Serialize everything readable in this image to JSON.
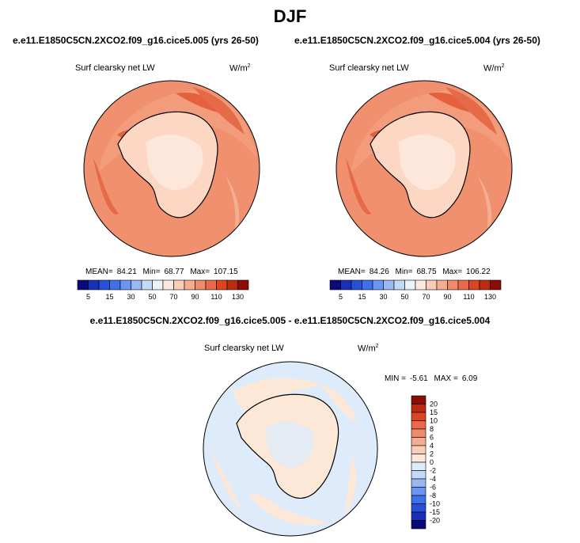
{
  "title": "DJF",
  "panels": [
    {
      "title": "e.e11.E1850C5CN.2XCO2.f09_g16.cice5.005 (yrs 26-50)",
      "variable": "Surf clearsky net LW",
      "units_base": "W/m",
      "units_exp": "2",
      "mean_label": "MEAN=",
      "mean": "84.21",
      "min_label": "Min=",
      "min": "68.77",
      "max_label": "Max=",
      "max": "107.15"
    },
    {
      "title": "e.e11.E1850C5CN.2XCO2.f09_g16.cice5.004 (yrs 26-50)",
      "variable": "Surf clearsky net LW",
      "units_base": "W/m",
      "units_exp": "2",
      "mean_label": "MEAN=",
      "mean": "84.26",
      "min_label": "Min=",
      "min": "68.75",
      "max_label": "Max=",
      "max": "106.22"
    }
  ],
  "difference": {
    "title": "e.e11.E1850C5CN.2XCO2.f09_g16.cice5.005 - e.e11.E1850C5CN.2XCO2.f09_g16.cice5.004",
    "variable": "Surf clearsky net LW",
    "units_base": "W/m",
    "units_exp": "2",
    "min_label": "MIN =",
    "min": "-5.61",
    "max_label": "MAX =",
    "max": "6.09"
  },
  "chart_data": [
    {
      "type": "heatmap",
      "projection": "south-polar-stereographic",
      "title": "e.e11.E1850C5CN.2XCO2.f09_g16.cice5.005 (yrs 26-50)",
      "variable": "Surf clearsky net LW",
      "units": "W/m2",
      "stats": {
        "mean": 84.21,
        "min": 68.77,
        "max": 107.15
      },
      "colorbar": {
        "orientation": "horizontal",
        "levels": [
          5,
          10,
          15,
          20,
          30,
          40,
          50,
          60,
          70,
          80,
          90,
          100,
          110,
          120,
          130
        ],
        "tick_labels": [
          "5",
          "15",
          "30",
          "50",
          "70",
          "90",
          "110",
          "130"
        ],
        "colors": [
          "#0a0a7a",
          "#1a2fb8",
          "#2750d8",
          "#3f70e8",
          "#6a95f0",
          "#98b8f4",
          "#c4d8f8",
          "#eaf2fc",
          "#fde9dd",
          "#f9cdb7",
          "#f5ac8f",
          "#ef8a6a",
          "#e9694a",
          "#dc4422",
          "#bc2a10",
          "#8c0c06"
        ]
      }
    },
    {
      "type": "heatmap",
      "projection": "south-polar-stereographic",
      "title": "e.e11.E1850C5CN.2XCO2.f09_g16.cice5.004 (yrs 26-50)",
      "variable": "Surf clearsky net LW",
      "units": "W/m2",
      "stats": {
        "mean": 84.26,
        "min": 68.75,
        "max": 106.22
      },
      "colorbar": {
        "orientation": "horizontal",
        "levels": [
          5,
          10,
          15,
          20,
          30,
          40,
          50,
          60,
          70,
          80,
          90,
          100,
          110,
          120,
          130
        ],
        "tick_labels": [
          "5",
          "15",
          "30",
          "50",
          "70",
          "90",
          "110",
          "130"
        ],
        "colors": [
          "#0a0a7a",
          "#1a2fb8",
          "#2750d8",
          "#3f70e8",
          "#6a95f0",
          "#98b8f4",
          "#c4d8f8",
          "#eaf2fc",
          "#fde9dd",
          "#f9cdb7",
          "#f5ac8f",
          "#ef8a6a",
          "#e9694a",
          "#dc4422",
          "#bc2a10",
          "#8c0c06"
        ]
      }
    },
    {
      "type": "heatmap",
      "projection": "south-polar-stereographic",
      "title": "e.e11.E1850C5CN.2XCO2.f09_g16.cice5.005 - e.e11.E1850C5CN.2XCO2.f09_g16.cice5.004",
      "variable": "Surf clearsky net LW",
      "units": "W/m2",
      "stats": {
        "min": -5.61,
        "max": 6.09
      },
      "colorbar": {
        "orientation": "vertical",
        "levels": [
          -20,
          -15,
          -10,
          -8,
          -6,
          -4,
          -2,
          0,
          2,
          4,
          6,
          8,
          10,
          15,
          20
        ],
        "tick_labels": [
          "20",
          "15",
          "10",
          "8",
          "6",
          "4",
          "2",
          "0",
          "-2",
          "-4",
          "-6",
          "-8",
          "-10",
          "-15",
          "-20"
        ],
        "colors": [
          "#0a0a7a",
          "#1a2fb8",
          "#2750d8",
          "#3f70e8",
          "#6a95f0",
          "#98b8f4",
          "#c4d8f8",
          "#deebfa",
          "#fde8d8",
          "#f9cdb7",
          "#f5ac8f",
          "#ef8a6a",
          "#e9694a",
          "#dc4422",
          "#bc2a10",
          "#8c0c06"
        ]
      }
    }
  ]
}
